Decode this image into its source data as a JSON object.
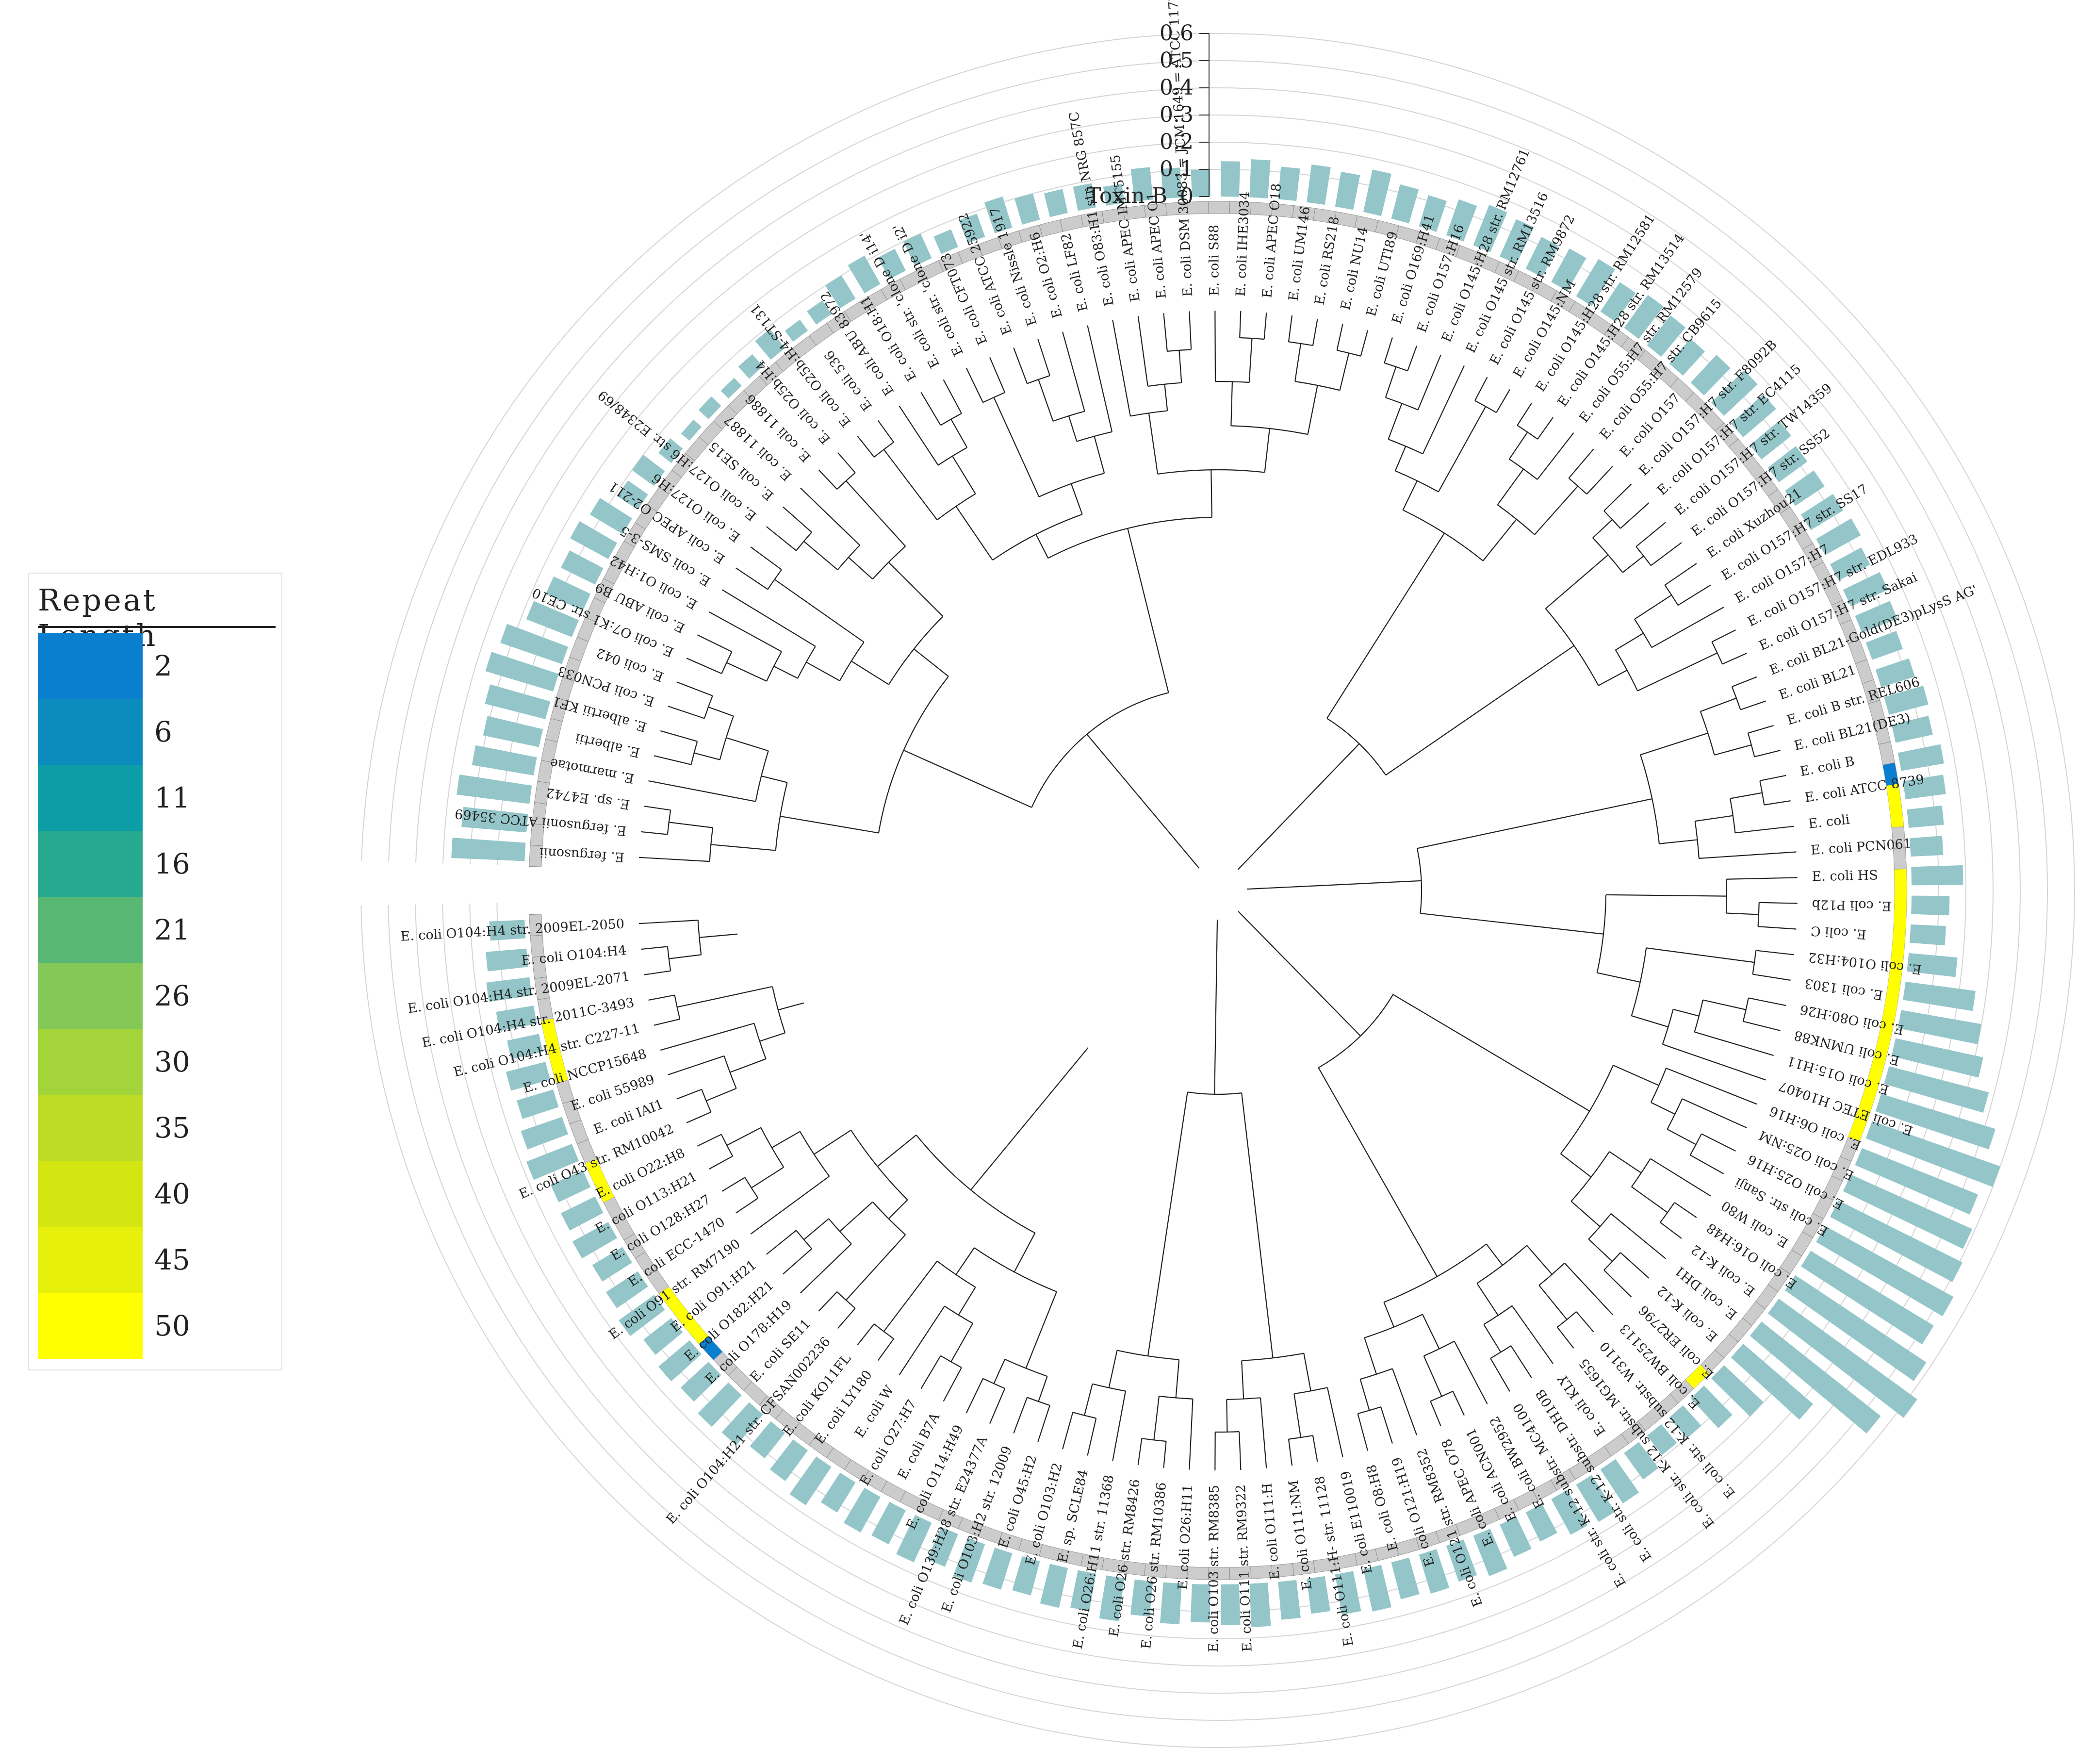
{
  "legend": {
    "title": "Repeat Length",
    "items": [
      {
        "label": "2",
        "color": "#0a7fd0"
      },
      {
        "label": "6",
        "color": "#0b8cbc"
      },
      {
        "label": "11",
        "color": "#0d9da7"
      },
      {
        "label": "16",
        "color": "#26a98f"
      },
      {
        "label": "21",
        "color": "#58b772"
      },
      {
        "label": "26",
        "color": "#84c957"
      },
      {
        "label": "30",
        "color": "#a3d43a"
      },
      {
        "label": "35",
        "color": "#bedc26"
      },
      {
        "label": "40",
        "color": "#d4e612"
      },
      {
        "label": "45",
        "color": "#e7f00a"
      },
      {
        "label": "50",
        "color": "#ffff00"
      }
    ]
  },
  "ring": {
    "axis_label": "Toxin B",
    "ticks": [
      "0",
      "0.1",
      "0.2",
      "0.3",
      "0.4",
      "0.5",
      "0.6"
    ],
    "bar_color": "#94c6c9",
    "track_color": "#cccccc",
    "highlights": {
      "blue": "#0a7fd0",
      "yellow": "#ffff00"
    }
  },
  "leaves": [
    "E. fergusonii",
    "E. fergusonii ATCC 35469",
    "E. sp. E4742",
    "E. marmotae",
    "E. albertii",
    "E. albertii KF1",
    "E. coli PCN033",
    "E. coli 042",
    "E. coli O7:K1 str. CE10",
    "E. coli ABU B9",
    "E. coli O1:H42",
    "E. coli SMS-3-5",
    "E. coli APEC O2-211",
    "E. coli O127:H6",
    "E. coli O127:H6 str. E2348/69",
    "E. coli SE15",
    "E. coli 11887",
    "E. coli 11886",
    "E. coli O25b:H4",
    "E. coli O25b:H4-ST131",
    "E. coli 536",
    "E. coli ABU 83972",
    "E. coli O18:H1",
    "E. coli str. 'clone D i14'",
    "E. coli str. 'clone D i2'",
    "E. coli CFT073",
    "E. coli ATCC 25922",
    "E. coli Nissle 1917",
    "E. coli O2:H6",
    "E. coli LF82",
    "E. coli O83:H1 str. NRG 857C",
    "E. coli APEC IMT5155",
    "E. coli APEC O1",
    "E. coli DSM 30083 = JCM 1649 = ATCC 11775",
    "E. coli S88",
    "E. coli IHE3034",
    "E. coli APEC O18",
    "E. coli UM146",
    "E. coli RS218",
    "E. coli NU14",
    "E. coli UTI89",
    "E. coli O169:H41",
    "E. coli O157:H16",
    "E. coli O145:H28 str. RM12761",
    "E. coli O145 str. RM13516",
    "E. coli O145 str. RM9872",
    "E. coli O145:NM",
    "E. coli O145:H28 str. RM12581",
    "E. coli O145:H28 str. RM13514",
    "E. coli O55:H7 str. RM12579",
    "E. coli O55:H7 str. CB9615",
    "E. coli O157",
    "E. coli O157:H7 str. F8092B",
    "E. coli O157:H7 str. EC4115",
    "E. coli O157:H7 str. TW14359",
    "E. coli O157:H7 str. SS52",
    "E. coli Xuzhou21",
    "E. coli O157:H7 str. SS17",
    "E. coli O157:H7",
    "E. coli O157:H7 str. EDL933",
    "E. coli O157:H7 str. Sakai",
    "E. coli BL21-Gold(DE3)pLysS AG'",
    "E. coli BL21",
    "E. coli B str. REL606",
    "E. coli BL21(DE3)",
    "E. coli B",
    "E. coli ATCC 8739",
    "E. coli",
    "E. coli PCN061",
    "E. coli HS",
    "E. coli P12b",
    "E. coli C",
    "E. coli O104:H32",
    "E. coli 1303",
    "E. coli O80:H26",
    "E. coli UMNK88",
    "E. coli O15:H11",
    "E. coli ETEC H10407",
    "E. coli O6:H16",
    "E. coli O25:NM",
    "E. coli O25:H16",
    "E. coli str. Sanji",
    "E. coli W80",
    "E. coli O16:H48",
    "E. coli K-12",
    "E. coli DH1",
    "E. coli K-12",
    "E. coli ER2796",
    "E. coli BW25113",
    "E. coli str. K-12 substr. W3110",
    "E. coli str. K-12 substr. MG1655",
    "E. coli KLY",
    "E. coli str. K-12 substr. DH10B",
    "E. coli str. K-12 substr. MC4100",
    "E. coli BW2952",
    "E. coli ACN001",
    "E. coli APEC O78",
    "E. coli O121 str. RM8352",
    "E. coli O121:H19",
    "E. coli O8:H8",
    "E. coli E110019",
    "E. coli O111:H- str. 11128",
    "E. coli O111:NM",
    "E. coli O111:H",
    "E. coli O111 str. RM9322",
    "E. coli O103 str. RM8385",
    "E. coli O26:H11",
    "E. coli O26 str. RM10386",
    "E. coli O26 str. RM8426",
    "E. coli O26:H11 str. 11368",
    "E. sp. SCLE84",
    "E. coli O103:H2",
    "E. coli O45:H2",
    "E. coli O103:H2 str. 12009",
    "E. coli O139:H28 str. E24377A",
    "E. coli O114:H49",
    "E. coli B7A",
    "E. coli O27:H7",
    "E. coli W",
    "E. coli LY180",
    "E. coli KO11FL",
    "E. coli O104:H21 str. CFSAN002236",
    "E. coli SE11",
    "E. coli O178:H19",
    "E. coli O182:H21",
    "E. coli O91:H21",
    "E. coli O91 str. RM7190",
    "E. coli ECC-1470",
    "E. coli O128:H27",
    "E. coli O113:H21",
    "E. coli O22:H8",
    "E. coli O43 str. RM10042",
    "E. coli IAI1",
    "E. coli 55989",
    "E. coli NCCP15648",
    "E. coli O104:H4 str. C227-11",
    "E. coli O104:H4 str. 2011C-3493",
    "E. coli O104:H4 str. 2009EL-2071",
    "E. coli O104:H4",
    "E. coli O104:H4 str. 2009EL-2050"
  ],
  "bar_values": [
    0.27,
    0.24,
    0.27,
    0.23,
    0.21,
    0.23,
    0.26,
    0.24,
    0.18,
    0.15,
    0.14,
    0.16,
    0.14,
    0.09,
    0.1,
    0.06,
    0.04,
    0.05,
    0.04,
    0.06,
    0.09,
    0.05,
    0.06,
    0.1,
    0.12,
    0.09,
    0.1,
    0.07,
    0.09,
    0.12,
    0.1,
    0.09,
    0.09,
    0.07,
    0.12,
    0.11,
    0.1,
    0.13,
    0.14,
    0.12,
    0.14,
    0.13,
    0.16,
    0.13,
    0.12,
    0.14,
    0.16,
    0.15,
    0.13,
    0.14,
    0.16,
    0.13,
    0.15,
    0.14,
    0.12,
    0.14,
    0.17,
    0.16,
    0.14,
    0.13,
    0.13,
    0.14,
    0.15,
    0.13,
    0.15,
    0.14,
    0.12,
    0.13,
    0.15,
    0.14,
    0.16,
    0.15,
    0.13,
    0.12,
    0.19,
    0.14,
    0.13,
    0.18,
    0.26,
    0.3,
    0.33,
    0.38,
    0.44,
    0.5,
    0.46,
    0.49,
    0.51,
    0.54,
    0.53,
    0.58,
    0.63,
    0.56,
    0.34,
    0.2,
    0.15,
    0.1,
    0.09,
    0.12,
    0.15,
    0.16,
    0.15,
    0.12,
    0.13,
    0.16,
    0.14,
    0.15,
    0.14,
    0.16,
    0.15,
    0.13,
    0.14,
    0.16,
    0.15,
    0.14,
    0.15,
    0.13,
    0.16,
    0.14,
    0.15,
    0.13,
    0.14,
    0.15,
    0.13,
    0.16,
    0.14,
    0.15,
    0.13,
    0.17,
    0.14,
    0.12,
    0.15,
    0.16,
    0.14,
    0.15,
    0.13,
    0.16,
    0.14,
    0.13,
    0.15,
    0.14,
    0.13,
    0.18,
    0.16,
    0.14,
    0.15,
    0.12,
    0.14,
    0.16,
    0.15,
    0.13
  ],
  "track_highlight_segments": [
    {
      "color": "blue",
      "from": 94,
      "to": 95
    },
    {
      "color": "yellow",
      "from": 95,
      "to": 97
    },
    {
      "color": "yellow",
      "from": 99,
      "to": 112
    },
    {
      "color": "yellow",
      "from": 125,
      "to": 126
    },
    {
      "color": "blue",
      "from": 177,
      "to": 178
    },
    {
      "color": "yellow",
      "from": 178,
      "to": 181
    },
    {
      "color": "yellow",
      "from": 186,
      "to": 188
    },
    {
      "color": "yellow",
      "from": 192,
      "to": 195
    }
  ]
}
